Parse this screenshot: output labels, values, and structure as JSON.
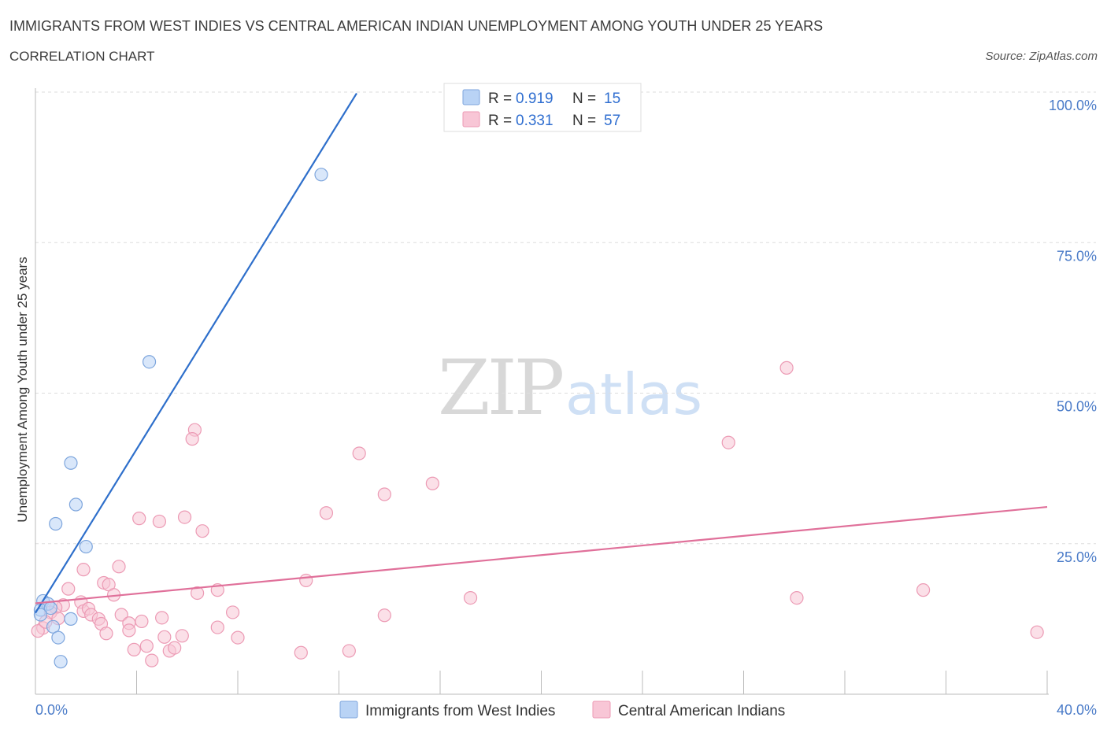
{
  "header": {
    "title": "IMMIGRANTS FROM WEST INDIES VS CENTRAL AMERICAN INDIAN UNEMPLOYMENT AMONG YOUTH UNDER 25 YEARS",
    "subtitle": "CORRELATION CHART",
    "source": "Source: ZipAtlas.com"
  },
  "watermark": {
    "zip": "ZIP",
    "atlas": "atlas"
  },
  "legend_box": {
    "rows": [
      {
        "r_label": "R = ",
        "r_value": "0.919",
        "n_label": "N = ",
        "n_value": "15"
      },
      {
        "r_label": "R = ",
        "r_value": "0.331",
        "n_label": "N = ",
        "n_value": "57"
      }
    ]
  },
  "colors": {
    "blue_fill": "#b9d3f5",
    "blue_stroke": "#7ea6dd",
    "blue_line": "#2e6fcb",
    "pink_fill": "#f8c6d6",
    "pink_stroke": "#ec9ab4",
    "pink_line": "#e0709a",
    "grid": "#dddddd",
    "axis": "#bbbbbb"
  },
  "chart_data": {
    "type": "scatter",
    "title": "IMMIGRANTS FROM WEST INDIES VS CENTRAL AMERICAN INDIAN UNEMPLOYMENT AMONG YOUTH UNDER 25 YEARS",
    "xlabel": "",
    "ylabel": "Unemployment Among Youth under 25 years",
    "xlim": [
      0,
      40
    ],
    "ylim": [
      0,
      100
    ],
    "x_ticks": [
      "0.0%",
      "40.0%"
    ],
    "y_ticks": [
      {
        "value": 25,
        "label": "25.0%"
      },
      {
        "value": 50,
        "label": "50.0%"
      },
      {
        "value": 75,
        "label": "75.0%"
      },
      {
        "value": 100,
        "label": "100.0%"
      }
    ],
    "grid": true,
    "legend_position": "top-center",
    "series": [
      {
        "name": "Immigrants from West Indies",
        "color": "blue",
        "R": 0.919,
        "N": 15,
        "trend": {
          "x": [
            0.0,
            12.7
          ],
          "y": [
            13.5,
            99.8
          ]
        },
        "points": [
          {
            "x": 11.3,
            "y": 86.3
          },
          {
            "x": 4.5,
            "y": 55.2
          },
          {
            "x": 1.4,
            "y": 38.4
          },
          {
            "x": 1.6,
            "y": 31.5
          },
          {
            "x": 0.8,
            "y": 28.3
          },
          {
            "x": 2.0,
            "y": 24.5
          },
          {
            "x": 0.3,
            "y": 15.5
          },
          {
            "x": 0.5,
            "y": 15.0
          },
          {
            "x": 0.2,
            "y": 14.0
          },
          {
            "x": 0.6,
            "y": 14.3
          },
          {
            "x": 1.4,
            "y": 12.5
          },
          {
            "x": 0.2,
            "y": 13.2
          },
          {
            "x": 0.7,
            "y": 11.2
          },
          {
            "x": 0.9,
            "y": 9.4
          },
          {
            "x": 1.0,
            "y": 5.4
          }
        ]
      },
      {
        "name": "Central American Indians",
        "color": "pink",
        "R": 0.331,
        "N": 57,
        "trend": {
          "x": [
            0.0,
            40.0
          ],
          "y": [
            15.1,
            31.1
          ]
        },
        "points": [
          {
            "x": 29.7,
            "y": 54.2
          },
          {
            "x": 6.3,
            "y": 43.9
          },
          {
            "x": 6.2,
            "y": 42.4
          },
          {
            "x": 27.4,
            "y": 41.8
          },
          {
            "x": 12.8,
            "y": 40.0
          },
          {
            "x": 15.7,
            "y": 35.0
          },
          {
            "x": 13.8,
            "y": 33.2
          },
          {
            "x": 11.5,
            "y": 30.1
          },
          {
            "x": 5.9,
            "y": 29.4
          },
          {
            "x": 4.1,
            "y": 29.2
          },
          {
            "x": 4.9,
            "y": 28.7
          },
          {
            "x": 6.6,
            "y": 27.1
          },
          {
            "x": 3.3,
            "y": 21.2
          },
          {
            "x": 1.9,
            "y": 20.7
          },
          {
            "x": 2.7,
            "y": 18.5
          },
          {
            "x": 2.9,
            "y": 18.2
          },
          {
            "x": 10.7,
            "y": 18.9
          },
          {
            "x": 1.3,
            "y": 17.5
          },
          {
            "x": 7.2,
            "y": 17.3
          },
          {
            "x": 6.4,
            "y": 16.8
          },
          {
            "x": 3.1,
            "y": 16.5
          },
          {
            "x": 17.2,
            "y": 16.0
          },
          {
            "x": 30.1,
            "y": 16.0
          },
          {
            "x": 35.1,
            "y": 17.3
          },
          {
            "x": 1.8,
            "y": 15.3
          },
          {
            "x": 1.1,
            "y": 14.8
          },
          {
            "x": 0.8,
            "y": 14.4
          },
          {
            "x": 1.9,
            "y": 13.8
          },
          {
            "x": 0.6,
            "y": 13.6
          },
          {
            "x": 2.1,
            "y": 14.2
          },
          {
            "x": 2.2,
            "y": 13.2
          },
          {
            "x": 3.4,
            "y": 13.2
          },
          {
            "x": 0.9,
            "y": 12.6
          },
          {
            "x": 2.5,
            "y": 12.5
          },
          {
            "x": 5.0,
            "y": 12.7
          },
          {
            "x": 4.2,
            "y": 12.1
          },
          {
            "x": 2.6,
            "y": 11.7
          },
          {
            "x": 3.7,
            "y": 11.8
          },
          {
            "x": 7.2,
            "y": 11.1
          },
          {
            "x": 0.3,
            "y": 11.0
          },
          {
            "x": 13.8,
            "y": 13.1
          },
          {
            "x": 7.8,
            "y": 13.6
          },
          {
            "x": 3.7,
            "y": 10.6
          },
          {
            "x": 2.8,
            "y": 10.1
          },
          {
            "x": 5.1,
            "y": 9.5
          },
          {
            "x": 5.8,
            "y": 9.7
          },
          {
            "x": 8.0,
            "y": 9.4
          },
          {
            "x": 4.4,
            "y": 8.0
          },
          {
            "x": 3.9,
            "y": 7.4
          },
          {
            "x": 5.3,
            "y": 7.2
          },
          {
            "x": 5.5,
            "y": 7.7
          },
          {
            "x": 10.5,
            "y": 6.9
          },
          {
            "x": 12.4,
            "y": 7.2
          },
          {
            "x": 4.6,
            "y": 5.6
          },
          {
            "x": 39.6,
            "y": 10.3
          },
          {
            "x": 0.1,
            "y": 10.5
          },
          {
            "x": 0.4,
            "y": 12.0
          }
        ]
      }
    ]
  }
}
